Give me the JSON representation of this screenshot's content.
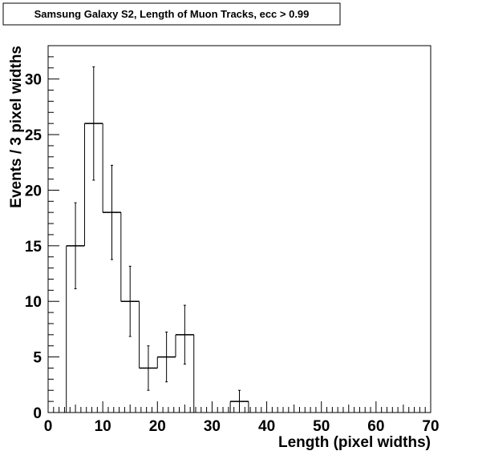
{
  "chart_data": {
    "type": "histogram",
    "title": "Samsung Galaxy S2, Length of Muon Tracks, ecc > 0.99",
    "xlabel": "Length (pixel widths)",
    "ylabel": "Events / 3 pixel widths",
    "xlim": [
      0,
      70
    ],
    "ylim": [
      0,
      33
    ],
    "grid": false,
    "legend": "none",
    "x_ticks": [
      "0",
      "10",
      "20",
      "30",
      "40",
      "50",
      "60",
      "70"
    ],
    "y_ticks": [
      "0",
      "5",
      "10",
      "15",
      "20",
      "25",
      "30"
    ],
    "bin_width": 3.33,
    "bins": [
      {
        "lo": 3.33,
        "hi": 6.67,
        "count": 15,
        "err": 3.87
      },
      {
        "lo": 6.67,
        "hi": 10.0,
        "count": 26,
        "err": 5.1
      },
      {
        "lo": 10.0,
        "hi": 13.33,
        "count": 18,
        "err": 4.24
      },
      {
        "lo": 13.33,
        "hi": 16.67,
        "count": 10,
        "err": 3.16
      },
      {
        "lo": 16.67,
        "hi": 20.0,
        "count": 4,
        "err": 2.0
      },
      {
        "lo": 20.0,
        "hi": 23.33,
        "count": 5,
        "err": 2.24
      },
      {
        "lo": 23.33,
        "hi": 26.67,
        "count": 7,
        "err": 2.65
      },
      {
        "lo": 26.67,
        "hi": 30.0,
        "count": 0,
        "err": 0
      },
      {
        "lo": 30.0,
        "hi": 33.33,
        "count": 0,
        "err": 0
      },
      {
        "lo": 33.33,
        "hi": 36.67,
        "count": 1,
        "err": 1.0
      }
    ],
    "line_color": "#000000",
    "background_color": "#ffffff"
  }
}
